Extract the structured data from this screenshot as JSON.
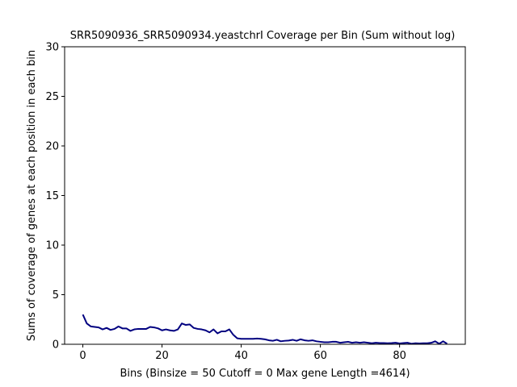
{
  "chart_data": {
    "type": "line",
    "title": "SRR5090936_SRR5090934.yeastchrI Coverage per Bin (Sum without log)",
    "xlabel": "Bins  (Binsize = 50 Cutoff = 0 Max gene Length =4614)",
    "ylabel": "Sums of coverage of genes at each position in each bin",
    "xlim": [
      -4.6,
      96.6
    ],
    "ylim": [
      0,
      30
    ],
    "xticks": [
      0,
      20,
      40,
      60,
      80
    ],
    "yticks": [
      0,
      5,
      10,
      15,
      20,
      25,
      30
    ],
    "grid": false,
    "line_color": "#000080",
    "series": [
      {
        "x": [
          0,
          1,
          2,
          3,
          4,
          5,
          6,
          7,
          8,
          9,
          10,
          11,
          12,
          13,
          14,
          15,
          16,
          17,
          18,
          19,
          20,
          21,
          22,
          23,
          24,
          25,
          26,
          27,
          28,
          29,
          30,
          31,
          32,
          33,
          34,
          35,
          36,
          37,
          38,
          39,
          40,
          41,
          42,
          43,
          44,
          45,
          46,
          47,
          48,
          49,
          50,
          51,
          52,
          53,
          54,
          55,
          56,
          57,
          58,
          59,
          60,
          61,
          62,
          63,
          64,
          65,
          66,
          67,
          68,
          69,
          70,
          71,
          72,
          73,
          74,
          75,
          76,
          77,
          78,
          79,
          80,
          81,
          82,
          83,
          84,
          85,
          86,
          87,
          88,
          89,
          90,
          91,
          92
        ],
        "y": [
          3.0,
          2.1,
          1.8,
          1.75,
          1.7,
          1.5,
          1.65,
          1.45,
          1.55,
          1.8,
          1.6,
          1.6,
          1.35,
          1.5,
          1.55,
          1.55,
          1.55,
          1.75,
          1.7,
          1.6,
          1.4,
          1.5,
          1.4,
          1.35,
          1.5,
          2.1,
          1.95,
          2.0,
          1.65,
          1.55,
          1.5,
          1.4,
          1.2,
          1.5,
          1.1,
          1.3,
          1.3,
          1.5,
          0.95,
          0.6,
          0.55,
          0.55,
          0.55,
          0.55,
          0.58,
          0.55,
          0.5,
          0.4,
          0.35,
          0.45,
          0.3,
          0.35,
          0.38,
          0.45,
          0.35,
          0.5,
          0.4,
          0.35,
          0.4,
          0.3,
          0.25,
          0.2,
          0.2,
          0.25,
          0.25,
          0.15,
          0.2,
          0.25,
          0.15,
          0.2,
          0.15,
          0.2,
          0.15,
          0.1,
          0.15,
          0.12,
          0.12,
          0.1,
          0.12,
          0.15,
          0.08,
          0.12,
          0.15,
          0.05,
          0.1,
          0.08,
          0.1,
          0.1,
          0.15,
          0.3,
          0.05,
          0.3,
          0.05
        ]
      }
    ]
  }
}
